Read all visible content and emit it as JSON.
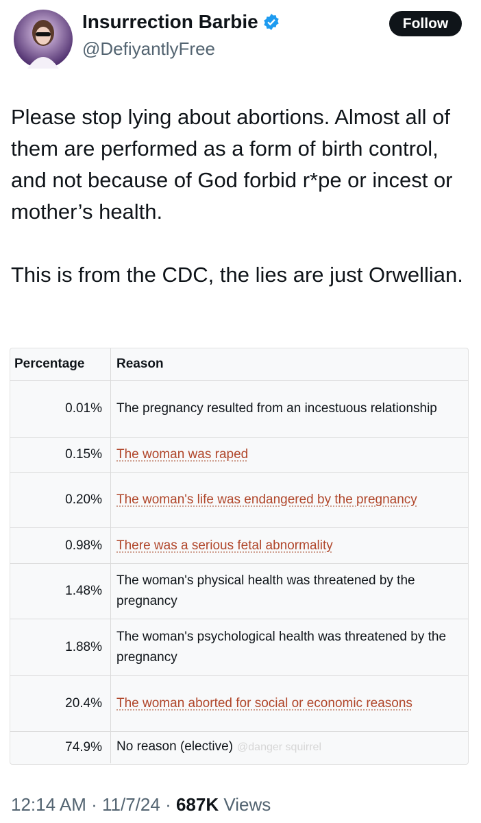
{
  "header": {
    "name": "Insurrection Barbie",
    "handle": "@DefiyantlyFree",
    "follow": "Follow"
  },
  "post": {
    "paragraphs": [
      "Please stop lying about abortions. Almost all of them are performed as a form of birth control, and not because of God forbid r*pe or incest or mother’s health.",
      "This is from the CDC, the lies are just Orwellian."
    ]
  },
  "table": {
    "columns": [
      "Percentage",
      "Reason"
    ],
    "rows": [
      [
        "0.01%",
        "The pregnancy resulted from an incestuous relationship"
      ],
      [
        "0.15%",
        "The woman was raped"
      ],
      [
        "0.20%",
        "The woman's life was endangered by the pregnancy"
      ],
      [
        "0.98%",
        "There was a serious fetal abnormality"
      ],
      [
        "1.48%",
        "The woman's physical health was threatened by the pregnancy"
      ],
      [
        "1.88%",
        "The woman's psychological health was threatened by the pregnancy"
      ],
      [
        "20.4%",
        "The woman aborted for social or economic reasons"
      ],
      [
        "74.9%",
        "No reason (elective)"
      ]
    ],
    "watermark": "@danger squirrel"
  },
  "footer": {
    "time": "12:14 AM",
    "separator": "·",
    "date": "11/7/24",
    "views": "687K",
    "views_label": "Views"
  }
}
